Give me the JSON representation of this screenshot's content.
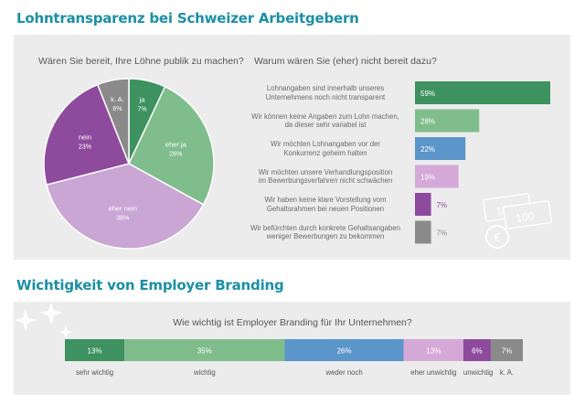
{
  "section1": {
    "title": "Lohntransparenz bei Schweizer Arbeitgebern"
  },
  "section2": {
    "title": "Wichtigkeit von Employer Branding"
  },
  "chart_data": [
    {
      "type": "pie",
      "title": "Wären Sie bereit, Ihre Löhne publik zu machen?",
      "slices": [
        {
          "label": "ja",
          "value": 7,
          "display": "7%",
          "color": "#3d9260"
        },
        {
          "label": "eher ja",
          "value": 26,
          "display": "26%",
          "color": "#80bd8d"
        },
        {
          "label": "eher nein",
          "value": 38,
          "display": "38%",
          "color": "#c9a6d4"
        },
        {
          "label": "nein",
          "value": 23,
          "display": "23%",
          "color": "#8e4b9d"
        },
        {
          "label": "k. A.",
          "value": 6,
          "display": "6%",
          "color": "#8a8a8a"
        }
      ]
    },
    {
      "type": "bar",
      "orientation": "horizontal",
      "title": "Warum wären Sie (eher) nicht bereit dazu?",
      "xlim": [
        0,
        59
      ],
      "bars": [
        {
          "label": [
            "Lohnangaben sind innerhalb unseres",
            "Unternehmens noch nicht transparent"
          ],
          "value": 59,
          "display": "59%",
          "color": "#3d9260",
          "text_color": "#ffffff"
        },
        {
          "label": [
            "Wir können keine Angaben zum Lohn machen,",
            "da dieser sehr variabel ist"
          ],
          "value": 28,
          "display": "28%",
          "color": "#80bd8d",
          "text_color": "#ffffff"
        },
        {
          "label": [
            "Wir möchten Lohnangaben vor der",
            "Konkurrenz geheim halten"
          ],
          "value": 22,
          "display": "22%",
          "color": "#5b95c9",
          "text_color": "#ffffff"
        },
        {
          "label": [
            "Wir möchten unsere Verhandlungsposition",
            "im Bewerbungsverfahren nicht schwächen"
          ],
          "value": 19,
          "display": "19%",
          "color": "#d5a9d7",
          "text_color": "#ffffff"
        },
        {
          "label": [
            "Wir haben keine klare Vorstellung vom",
            "Gehaltsrahmen bei neuen Positionen"
          ],
          "value": 7,
          "display": "7%",
          "color": "#8e4b9d",
          "text_color": "#8e4b9d"
        },
        {
          "label": [
            "Wir befürchten durch konkrete Gehaltsangaben",
            "weniger Bewerbungen zu bekommen"
          ],
          "value": 7,
          "display": "7%",
          "color": "#8a8a8a",
          "text_color": "#8a8a8a"
        }
      ]
    },
    {
      "type": "bar",
      "orientation": "stacked-horizontal",
      "title": "Wie wichtig ist Employer Branding für Ihr Unternehmen?",
      "segments": [
        {
          "label": "sehr wichtig",
          "value": 13,
          "display": "13%",
          "color": "#3d9260"
        },
        {
          "label": "wichtig",
          "value": 35,
          "display": "35%",
          "color": "#80bd8d"
        },
        {
          "label": "weder noch",
          "value": 26,
          "display": "26%",
          "color": "#5b95c9"
        },
        {
          "label": "eher unwichtig",
          "value": 13,
          "display": "13%",
          "color": "#d5a9d7"
        },
        {
          "label": "unwichtig",
          "value": 6,
          "display": "6%",
          "color": "#8e4b9d"
        },
        {
          "label": "k. A.",
          "value": 7,
          "display": "7%",
          "color": "#8a8a8a"
        }
      ]
    }
  ],
  "decor": {
    "banknote_1": "100",
    "banknote_2": "100",
    "currency_symbol": "€"
  }
}
